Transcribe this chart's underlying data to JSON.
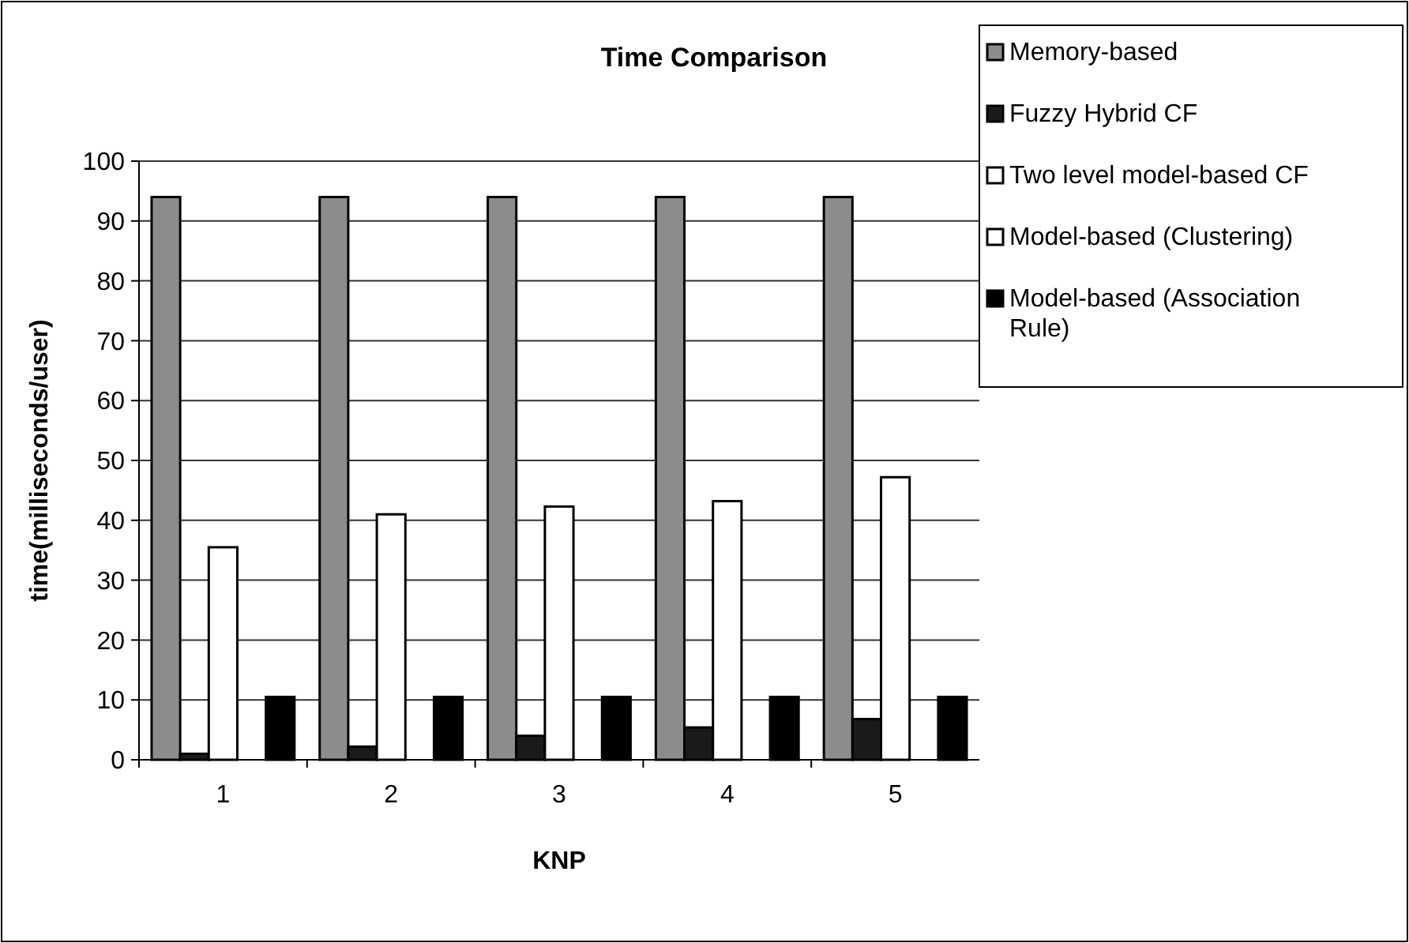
{
  "chart_data": {
    "type": "bar",
    "title": "Time Comparison",
    "xlabel": "KNP",
    "ylabel": "time(milliseconds/user)",
    "categories": [
      "1",
      "2",
      "3",
      "4",
      "5"
    ],
    "series": [
      {
        "name": "Memory-based",
        "color": "#8c8c8c",
        "values": [
          94,
          94,
          94,
          94,
          94
        ]
      },
      {
        "name": "Fuzzy Hybrid CF",
        "color": "#1a1a1a",
        "values": [
          1,
          2.2,
          4,
          5.4,
          6.8
        ]
      },
      {
        "name": "Two level model-based CF",
        "color": "#ffffff",
        "values": [
          35.5,
          41,
          42.3,
          43.2,
          47.2
        ]
      },
      {
        "name": "Model-based (Clustering)",
        "color": "#ffffff",
        "values": [
          0,
          0,
          0,
          0,
          0
        ]
      },
      {
        "name": "Model-based (Association Rule)",
        "color": "#000000",
        "values": [
          10.5,
          10.5,
          10.5,
          10.5,
          10.5
        ]
      }
    ],
    "ylim": [
      0,
      100
    ],
    "yticks": [
      0,
      10,
      20,
      30,
      40,
      50,
      60,
      70,
      80,
      90,
      100
    ],
    "grid": "y",
    "legend": "top right"
  }
}
